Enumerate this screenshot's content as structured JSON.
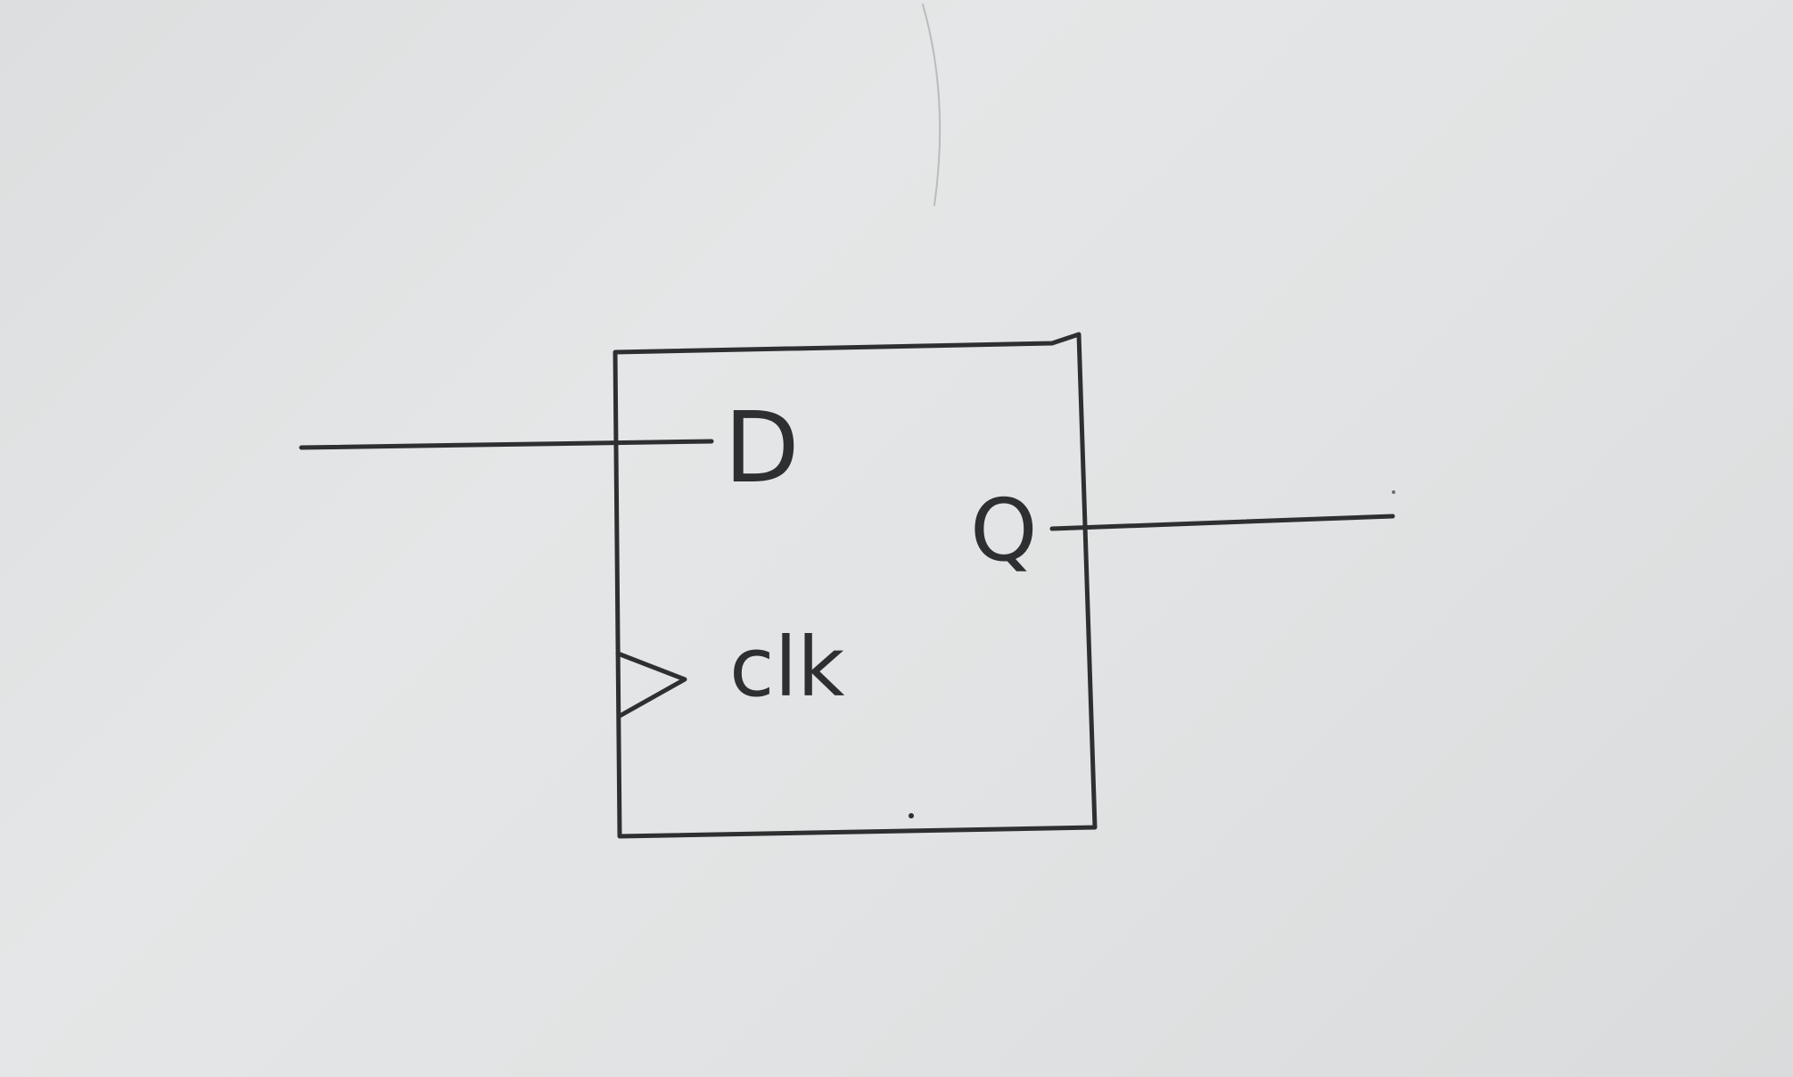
{
  "diagram": {
    "type": "d-flip-flop",
    "pins": {
      "data_input": "D",
      "output": "Q",
      "clock": "clk"
    },
    "colors": {
      "paper": "#e1e3e4",
      "ink": "#2e2f30"
    }
  }
}
